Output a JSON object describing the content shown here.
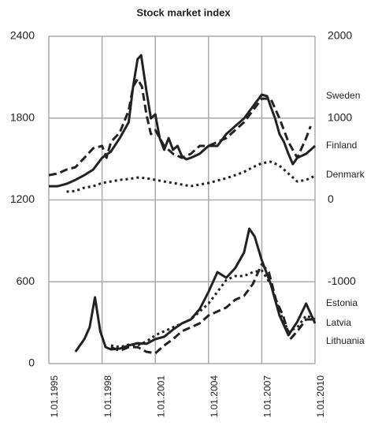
{
  "chart_data": {
    "type": "line",
    "title": "Stock market index",
    "xlim": [
      1995,
      2010
    ],
    "xticks": [
      {
        "value": 1995,
        "label": "1.01.1995"
      },
      {
        "value": 1998,
        "label": "1.01.1998"
      },
      {
        "value": 2001,
        "label": "1.01.2001"
      },
      {
        "value": 2004,
        "label": "1.01.2004"
      },
      {
        "value": 2007,
        "label": "1.01.2007"
      },
      {
        "value": 2010,
        "label": "1.01.2010"
      }
    ],
    "ylim": [
      0,
      2400
    ],
    "yticks": [
      0,
      600,
      1200,
      1800,
      2400
    ],
    "y2lim": [
      -2000,
      2000
    ],
    "y2ticks": [
      -1000,
      0,
      1000,
      2000
    ],
    "grid": true,
    "series": [
      {
        "name": "Sweden",
        "color": "#222222",
        "style": "solid",
        "axis": "y2",
        "x": [
          1995,
          1995.5,
          1996,
          1996.5,
          1997,
          1997.5,
          1998,
          1998.5,
          1999,
          1999.5,
          1999.75,
          2000,
          2000.2,
          2000.5,
          2000.75,
          2001,
          2001.25,
          2001.5,
          2001.75,
          2002,
          2002.25,
          2002.5,
          2002.75,
          2003,
          2003.5,
          2004,
          2004.5,
          2005,
          2005.5,
          2006,
          2006.5,
          2007,
          2007.3,
          2007.5,
          2007.75,
          2008,
          2008.25,
          2008.5,
          2008.75,
          2009,
          2009.5,
          2010
        ],
        "values": [
          168,
          168,
          197,
          245,
          303,
          371,
          515,
          592,
          756,
          949,
          1383,
          1720,
          1769,
          1335,
          997,
          1046,
          756,
          612,
          756,
          612,
          660,
          535,
          496,
          515,
          564,
          660,
          660,
          805,
          901,
          997,
          1142,
          1287,
          1267,
          1142,
          997,
          805,
          708,
          564,
          438,
          515,
          564,
          660
        ]
      },
      {
        "name": "Finland",
        "color": "#222222",
        "style": "dashed",
        "axis": "y2",
        "x": [
          1995,
          1995.5,
          1996,
          1996.5,
          1997,
          1997.5,
          1998,
          1998.25,
          1998.5,
          1999,
          1999.5,
          1999.75,
          2000,
          2000.25,
          2000.5,
          2000.75,
          2001,
          2001.5,
          2002,
          2002.5,
          2003,
          2003.5,
          2004,
          2004.5,
          2005,
          2005.5,
          2006,
          2006.5,
          2007,
          2007.5,
          2008,
          2008.5,
          2009,
          2009.5,
          2009.75
        ],
        "values": [
          303,
          323,
          371,
          400,
          515,
          631,
          660,
          515,
          708,
          824,
          1094,
          1383,
          1479,
          1383,
          1046,
          805,
          853,
          660,
          564,
          515,
          564,
          660,
          660,
          708,
          756,
          853,
          949,
          1094,
          1238,
          1238,
          997,
          708,
          515,
          756,
          901
        ]
      },
      {
        "name": "Denmark",
        "color": "#222222",
        "style": "dotted",
        "axis": "y2",
        "x": [
          1996,
          1996.5,
          1997,
          1997.5,
          1998,
          1998.5,
          1999,
          1999.5,
          2000,
          2000.5,
          2001,
          2001.5,
          2002,
          2002.5,
          2003,
          2003.5,
          2004,
          2004.5,
          2005,
          2005.5,
          2006,
          2006.5,
          2007,
          2007.5,
          2008,
          2008.5,
          2009,
          2009.5,
          2010
        ],
        "values": [
          101,
          110,
          149,
          168,
          207,
          226,
          245,
          255,
          274,
          265,
          245,
          226,
          207,
          188,
          168,
          188,
          207,
          236,
          265,
          303,
          342,
          400,
          448,
          467,
          419,
          323,
          226,
          245,
          294
        ]
      },
      {
        "name": "Estonia",
        "color": "#222222",
        "style": "solid",
        "x": [
          1996.5,
          1997,
          1997.3,
          1997.6,
          1997.9,
          1998.2,
          1998.5,
          1999,
          1999.5,
          2000,
          2000.5,
          2001,
          2001.5,
          2002,
          2002.5,
          2003,
          2003.5,
          2004,
          2004.5,
          2005,
          2005.5,
          2006,
          2006.3,
          2006.6,
          2007,
          2007.5,
          2008,
          2008.5,
          2009,
          2009.5,
          2010
        ],
        "values": [
          87,
          179,
          266,
          486,
          237,
          121,
          104,
          110,
          133,
          150,
          145,
          179,
          197,
          249,
          295,
          324,
          399,
          526,
          671,
          630,
          700,
          815,
          989,
          931,
          758,
          584,
          353,
          208,
          307,
          440,
          295
        ]
      },
      {
        "name": "Latvia",
        "color": "#222222",
        "style": "dashed",
        "x": [
          1998.5,
          1999,
          1999.5,
          2000,
          2000.5,
          2001,
          2001.5,
          2002,
          2002.5,
          2003,
          2003.5,
          2004,
          2004.5,
          2005,
          2005.5,
          2006,
          2006.5,
          2007,
          2007.4,
          2007.8,
          2008.2,
          2008.6,
          2009,
          2009.5,
          2010
        ],
        "values": [
          121,
          93,
          121,
          121,
          87,
          75,
          133,
          179,
          237,
          266,
          295,
          353,
          382,
          411,
          468,
          497,
          584,
          729,
          671,
          468,
          353,
          179,
          237,
          324,
          324
        ]
      },
      {
        "name": "Lithuania",
        "color": "#222222",
        "style": "dotted",
        "x": [
          1998.5,
          1999,
          1999.5,
          2000,
          2000.5,
          2001,
          2001.5,
          2002,
          2002.5,
          2003,
          2003.5,
          2004,
          2004.5,
          2005,
          2005.5,
          2006,
          2006.5,
          2007,
          2007.5,
          2008,
          2008.5,
          2009,
          2009.5,
          2010
        ],
        "values": [
          133,
          121,
          139,
          133,
          162,
          208,
          237,
          266,
          295,
          324,
          382,
          440,
          526,
          613,
          642,
          642,
          671,
          682,
          584,
          382,
          237,
          266,
          353,
          324
        ]
      }
    ]
  }
}
